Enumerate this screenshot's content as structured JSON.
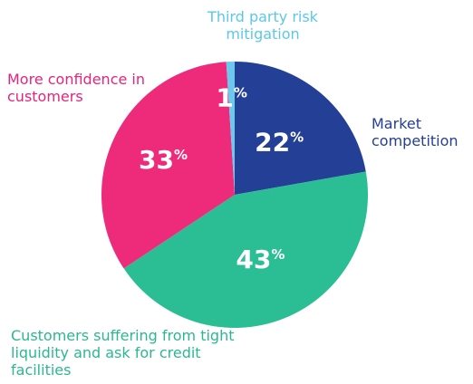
{
  "chart_data": {
    "type": "pie",
    "categories": [
      "Market competition",
      "Customers suffering from tight liquidity and ask for credit facilities",
      "More confidence in customers",
      "Third party risk mitigation"
    ],
    "values": [
      22,
      43,
      33,
      1
    ],
    "unit": "%",
    "colors": [
      "#243f96",
      "#2bbd93",
      "#ee2a7b",
      "#6cc8ec"
    ],
    "label_colors": [
      "#243f94",
      "#2bb88f",
      "#e6247a",
      "#5bc8e8"
    ]
  }
}
